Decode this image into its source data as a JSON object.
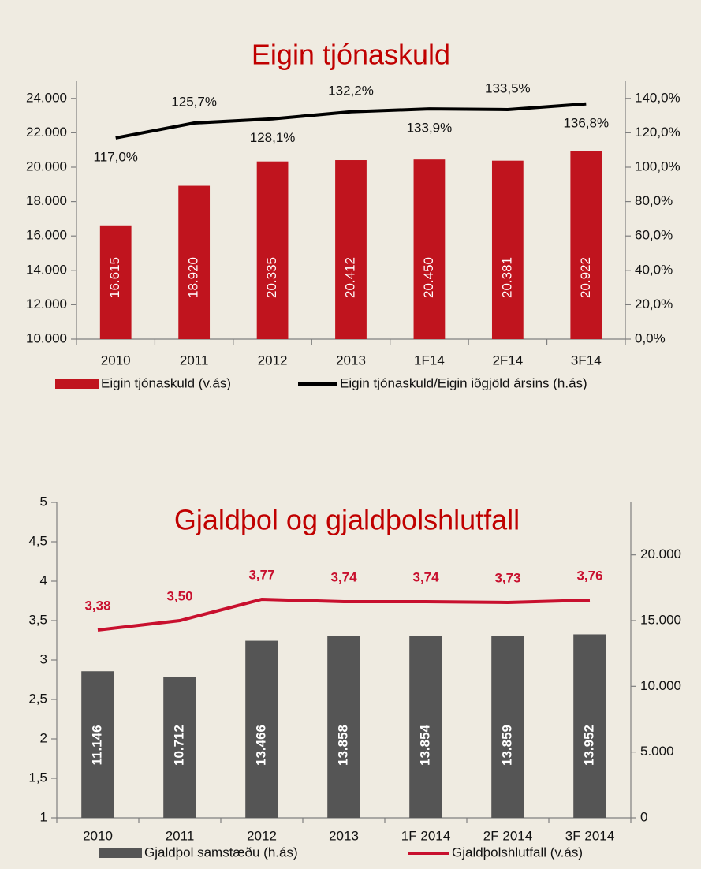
{
  "chart_data": [
    {
      "type": "combo",
      "title": "Eigin tjónaskuld",
      "categories": [
        "2010",
        "2011",
        "2012",
        "2013",
        "1F14",
        "2F14",
        "3F14"
      ],
      "series": [
        {
          "name": "Eigin tjónaskuld (v.ás)",
          "type": "bar",
          "axis": "y",
          "color": "#c0141e",
          "values": [
            16615,
            18920,
            20335,
            20412,
            20450,
            20381,
            20922
          ],
          "value_labels": [
            "16.615",
            "18.920",
            "20.335",
            "20.412",
            "20.450",
            "20.381",
            "20.922"
          ]
        },
        {
          "name": "Eigin tjónaskuld/Eigin iðgjöld ársins (h.ás)",
          "type": "line",
          "axis": "y2",
          "color": "#000000",
          "values": [
            117.0,
            125.7,
            128.1,
            132.2,
            133.9,
            133.5,
            136.8
          ],
          "value_labels": [
            "117,0%",
            "125,7%",
            "128,1%",
            "132,2%",
            "133,9%",
            "133,5%",
            "136,8%"
          ]
        }
      ],
      "ylim": [
        10000,
        25000
      ],
      "yticks": [
        {
          "value": 10000,
          "label": "10.000"
        },
        {
          "value": 12000,
          "label": "12.000"
        },
        {
          "value": 14000,
          "label": "14.000"
        },
        {
          "value": 16000,
          "label": "16.000"
        },
        {
          "value": 18000,
          "label": "18.000"
        },
        {
          "value": 20000,
          "label": "20.000"
        },
        {
          "value": 22000,
          "label": "22.000"
        },
        {
          "value": 24000,
          "label": "24.000"
        }
      ],
      "y2lim": [
        0,
        150
      ],
      "y2ticks": [
        {
          "value": 0,
          "label": "0,0%"
        },
        {
          "value": 20,
          "label": "20,0%"
        },
        {
          "value": 40,
          "label": "40,0%"
        },
        {
          "value": 60,
          "label": "60,0%"
        },
        {
          "value": 80,
          "label": "80,0%"
        },
        {
          "value": 100,
          "label": "100,0%"
        },
        {
          "value": 120,
          "label": "120,0%"
        },
        {
          "value": 140,
          "label": "140,0%"
        }
      ],
      "legend": "bottom"
    },
    {
      "type": "combo",
      "title": "Gjaldþol og gjaldþolshlutfall",
      "categories": [
        "2010",
        "2011",
        "2012",
        "2013",
        "1F 2014",
        "2F 2014",
        "3F 2014"
      ],
      "series": [
        {
          "name": "Gjaldþol samstæðu (h.ás)",
          "type": "bar",
          "axis": "y2",
          "color": "#555555",
          "values": [
            11146,
            10712,
            13466,
            13858,
            13854,
            13859,
            13952
          ],
          "value_labels": [
            "11.146",
            "10.712",
            "13.466",
            "13.858",
            "13.854",
            "13.859",
            "13.952"
          ]
        },
        {
          "name": "Gjaldþolshlutfall (v.ás)",
          "type": "line",
          "axis": "y",
          "color": "#c8102e",
          "values": [
            3.38,
            3.5,
            3.77,
            3.74,
            3.74,
            3.73,
            3.76
          ],
          "value_labels": [
            "3,38",
            "3,50",
            "3,77",
            "3,74",
            "3,74",
            "3,73",
            "3,76"
          ]
        }
      ],
      "ylim": [
        1,
        5
      ],
      "yticks": [
        1,
        {
          "value": 1.5,
          "label": "1,5"
        },
        2,
        {
          "value": 2.5,
          "label": "2,5"
        },
        3,
        {
          "value": 3.5,
          "label": "3,5"
        },
        4,
        {
          "value": 4.5,
          "label": "4,5"
        },
        5
      ],
      "y2lim": [
        0,
        24000
      ],
      "y2ticks": [
        0,
        {
          "value": 5000,
          "label": "5.000"
        },
        {
          "value": 10000,
          "label": "10.000"
        },
        {
          "value": 15000,
          "label": "15.000"
        },
        {
          "value": 20000,
          "label": "20.000"
        }
      ],
      "legend": "bottom"
    }
  ]
}
